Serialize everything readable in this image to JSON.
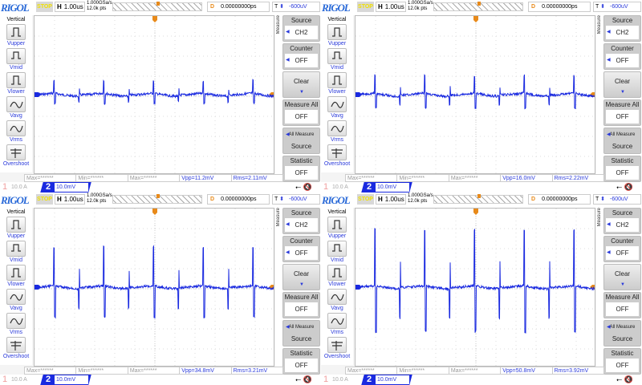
{
  "scope": {
    "brand": "RIGOL",
    "run_state": "STOP",
    "h_label": "H",
    "timebase": "1.00us",
    "sample_rate": "1.000GSa/s",
    "memory_depth": "12.0k pts",
    "delay_label": "D",
    "delay": "0.00000000ps",
    "trigger_label": "T",
    "trigger_level": "-600uV",
    "left_title": "Vertical",
    "left_items": [
      "Vupper",
      "Vmid",
      "Vlower",
      "Vavg",
      "Vrms",
      "Overshoot"
    ],
    "measure_tab": "Measure",
    "menu": {
      "source_label": "Source",
      "source_value": "CH2",
      "counter_label": "Counter",
      "counter_value": "OFF",
      "clear_label": "Clear",
      "measure_all_label": "Measure All",
      "measure_all_value": "OFF",
      "all_measure_label": "All Measure",
      "all_measure_value": "Source",
      "statistic_label": "Statistic",
      "statistic_value": "OFF"
    },
    "meas_placeholders": [
      "Max=******",
      "Min=******",
      "Max=******"
    ],
    "ch1_number": "1",
    "ch1_scale": "10.0 A",
    "ch2_number": "2",
    "ch2_scale": "10.0mV",
    "usb_icon": "usb-icon",
    "speaker_icon": "speaker-mute-icon",
    "trace_color": "#1a2ae0",
    "trigger_color": "#e88a1a"
  },
  "panels": [
    {
      "vpp": "Vpp=11.2mV",
      "rms": "Rms=2.11mV",
      "vpp_mv": 11.2
    },
    {
      "vpp": "Vpp=16.0mV",
      "rms": "Rms=2.22mV",
      "vpp_mv": 16.0
    },
    {
      "vpp": "Vpp=34.8mV",
      "rms": "Rms=3.21mV",
      "vpp_mv": 34.8
    },
    {
      "vpp": "Vpp=50.8mV",
      "rms": "Rms=3.92mV",
      "vpp_mv": 50.8
    }
  ]
}
